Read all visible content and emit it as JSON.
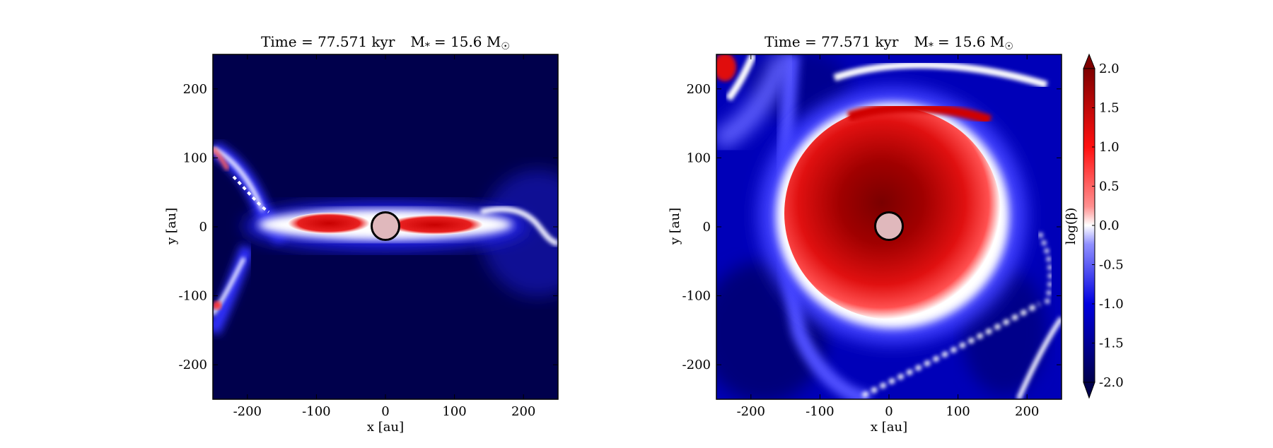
{
  "chart_data": [
    {
      "type": "heatmap",
      "title": "Time = 77.571 kyr    M ⁎ = 15.6 M☉",
      "title_parts": {
        "time": "Time = 77.571 kyr",
        "mass": "M",
        "mass_sub": "*",
        "mass_value": "= 15.6 M",
        "mass_unit": "☉"
      },
      "xlabel": "x [au]",
      "ylabel": "y [au]",
      "xlim": [
        -250,
        250
      ],
      "ylim": [
        -250,
        250
      ],
      "xticks": [
        -200,
        -100,
        0,
        100,
        200
      ],
      "yticks": [
        -200,
        -100,
        0,
        100,
        200
      ],
      "xtick_labels": [
        "-200",
        "-100",
        "0",
        "100",
        "200"
      ],
      "ytick_labels": [
        "-200",
        "-100",
        "0",
        "100",
        "200"
      ],
      "view": "edge-on",
      "sink_particle": {
        "x": 0,
        "y": 0,
        "radius_au": 20
      }
    },
    {
      "type": "heatmap",
      "title": "Time = 77.571 kyr    M ⁎ = 15.6 M☉",
      "title_parts": {
        "time": "Time = 77.571 kyr",
        "mass": "M",
        "mass_sub": "*",
        "mass_value": "= 15.6 M",
        "mass_unit": "☉"
      },
      "xlabel": "x [au]",
      "ylabel": "y [au]",
      "xlim": [
        -250,
        250
      ],
      "ylim": [
        -250,
        250
      ],
      "xticks": [
        -200,
        -100,
        0,
        100,
        200
      ],
      "yticks": [
        -200,
        -100,
        0,
        100,
        200
      ],
      "xtick_labels": [
        "-200",
        "-100",
        "0",
        "100",
        "200"
      ],
      "ytick_labels": [
        "-200",
        "-100",
        "0",
        "100",
        "200"
      ],
      "view": "face-on",
      "sink_particle": {
        "x": 0,
        "y": 0,
        "radius_au": 20
      }
    }
  ],
  "colorbar": {
    "label": "log(β)",
    "range": [
      -2.0,
      2.0
    ],
    "ticks": [
      2.0,
      1.5,
      1.0,
      0.5,
      0.0,
      -0.5,
      -1.0,
      -1.5,
      -2.0
    ],
    "tick_labels": [
      "2.0",
      "1.5",
      "1.0",
      "0.5",
      "0.0",
      "-0.5",
      "-1.0",
      "-1.5",
      "-2.0"
    ],
    "colormap": "seismic",
    "extend": "both",
    "colors": {
      "low": "#00004c",
      "mid": "#ffffff",
      "high": "#7f0000"
    }
  }
}
